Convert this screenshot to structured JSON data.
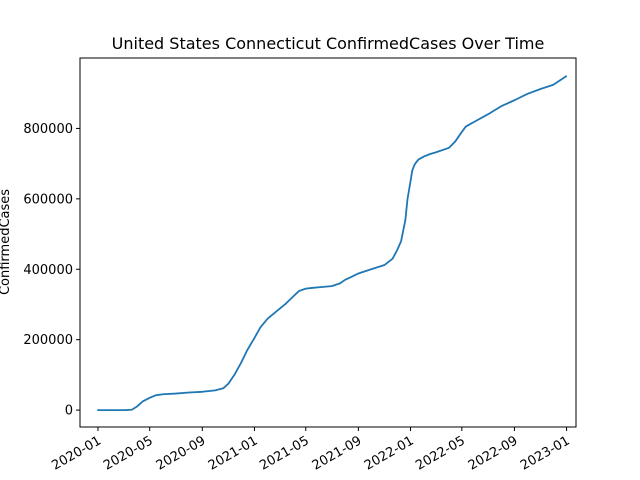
{
  "chart_data": {
    "type": "line",
    "title": "United States Connecticut ConfirmedCases Over Time",
    "xlabel": "",
    "ylabel": "ConfirmedCases",
    "grid": false,
    "legend": "none",
    "x_ticks": [
      "2020-01",
      "2020-05",
      "2020-09",
      "2021-01",
      "2021-05",
      "2021-09",
      "2022-01",
      "2022-05",
      "2022-09",
      "2023-01"
    ],
    "y_ticks": [
      0,
      200000,
      400000,
      600000,
      800000
    ],
    "y_tick_labels": [
      "0",
      "200000",
      "400000",
      "600000",
      "800000"
    ],
    "xlim": [
      "2019-11-20",
      "2023-01-23"
    ],
    "ylim": [
      -48000,
      1000000
    ],
    "series": [
      {
        "name": "ConfirmedCases",
        "color": "#1f77b4",
        "x": [
          "2020-01-01",
          "2020-03-05",
          "2020-03-20",
          "2020-04-01",
          "2020-04-15",
          "2020-05-01",
          "2020-05-15",
          "2020-06-01",
          "2020-07-01",
          "2020-08-01",
          "2020-09-01",
          "2020-10-01",
          "2020-10-20",
          "2020-11-01",
          "2020-11-15",
          "2020-12-01",
          "2020-12-15",
          "2021-01-01",
          "2021-01-15",
          "2021-02-01",
          "2021-03-01",
          "2021-03-15",
          "2021-04-01",
          "2021-04-15",
          "2021-05-01",
          "2021-05-15",
          "2021-06-01",
          "2021-07-01",
          "2021-07-20",
          "2021-08-01",
          "2021-08-15",
          "2021-09-01",
          "2021-10-01",
          "2021-11-01",
          "2021-11-20",
          "2021-12-01",
          "2021-12-10",
          "2021-12-20",
          "2021-12-25",
          "2022-01-01",
          "2022-01-05",
          "2022-01-10",
          "2022-01-15",
          "2022-01-20",
          "2022-02-01",
          "2022-02-15",
          "2022-03-01",
          "2022-04-01",
          "2022-04-15",
          "2022-05-01",
          "2022-05-10",
          "2022-05-20",
          "2022-06-01",
          "2022-07-01",
          "2022-08-01",
          "2022-09-01",
          "2022-10-01",
          "2022-11-01",
          "2022-12-01",
          "2022-12-31"
        ],
        "values": [
          0,
          0,
          1000,
          10000,
          25000,
          35000,
          42000,
          45000,
          47000,
          50000,
          52000,
          56000,
          62000,
          75000,
          100000,
          135000,
          170000,
          205000,
          235000,
          260000,
          288000,
          302000,
          322000,
          338000,
          345000,
          347000,
          349000,
          352000,
          360000,
          370000,
          378000,
          388000,
          400000,
          412000,
          430000,
          455000,
          480000,
          540000,
          600000,
          650000,
          680000,
          696000,
          705000,
          712000,
          720000,
          727000,
          732000,
          745000,
          762000,
          790000,
          805000,
          812000,
          820000,
          840000,
          863000,
          880000,
          898000,
          912000,
          924000,
          948000
        ]
      }
    ]
  }
}
